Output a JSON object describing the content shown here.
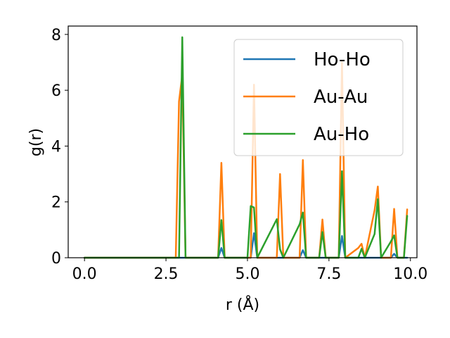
{
  "chart_data": {
    "type": "line",
    "title": "",
    "xlabel": "r (Å)",
    "ylabel": "g(r)",
    "xlim": [
      -0.5,
      10.2
    ],
    "ylim": [
      0,
      8.3
    ],
    "xticks": [
      0.0,
      2.5,
      5.0,
      7.5,
      10.0
    ],
    "xtick_labels": [
      "0.0",
      "2.5",
      "5.0",
      "7.5",
      "10.0"
    ],
    "yticks": [
      0,
      2,
      4,
      6,
      8
    ],
    "ytick_labels": [
      "0",
      "2",
      "4",
      "6",
      "8"
    ],
    "grid": false,
    "legend_position": "upper right",
    "series": [
      {
        "name": "Ho-Ho",
        "color": "#1f77b4",
        "points": [
          [
            0,
            0
          ],
          [
            2.8,
            0
          ],
          [
            2.9,
            0
          ],
          [
            3.0,
            0
          ],
          [
            3.1,
            0
          ],
          [
            4.1,
            0
          ],
          [
            4.2,
            0.35
          ],
          [
            4.3,
            0
          ],
          [
            5.0,
            0
          ],
          [
            5.1,
            0
          ],
          [
            5.2,
            0.88
          ],
          [
            5.3,
            0
          ],
          [
            5.9,
            0
          ],
          [
            6.0,
            0
          ],
          [
            6.1,
            0
          ],
          [
            6.6,
            0
          ],
          [
            6.7,
            0.27
          ],
          [
            6.8,
            0
          ],
          [
            7.2,
            0
          ],
          [
            7.3,
            0
          ],
          [
            7.4,
            0
          ],
          [
            7.8,
            0
          ],
          [
            7.9,
            0.78
          ],
          [
            8.0,
            0
          ],
          [
            8.4,
            0
          ],
          [
            8.5,
            0
          ],
          [
            8.6,
            0
          ],
          [
            8.9,
            0
          ],
          [
            9.0,
            0
          ],
          [
            9.1,
            0
          ],
          [
            9.4,
            0
          ],
          [
            9.5,
            0.14
          ],
          [
            9.6,
            0
          ],
          [
            9.8,
            0
          ],
          [
            9.9,
            0
          ]
        ]
      },
      {
        "name": "Au-Au",
        "color": "#ff7f0e",
        "points": [
          [
            0,
            0
          ],
          [
            2.8,
            0
          ],
          [
            2.9,
            5.6
          ],
          [
            3.0,
            6.55
          ],
          [
            3.1,
            0
          ],
          [
            4.1,
            0
          ],
          [
            4.2,
            3.4
          ],
          [
            4.3,
            0
          ],
          [
            5.0,
            0
          ],
          [
            5.1,
            0
          ],
          [
            5.2,
            6.2
          ],
          [
            5.3,
            0
          ],
          [
            5.9,
            0
          ],
          [
            6.0,
            3.0
          ],
          [
            6.1,
            0
          ],
          [
            6.6,
            0
          ],
          [
            6.7,
            3.5
          ],
          [
            6.8,
            0
          ],
          [
            7.2,
            0
          ],
          [
            7.3,
            1.37
          ],
          [
            7.4,
            0
          ],
          [
            7.8,
            0
          ],
          [
            7.9,
            7.0
          ],
          [
            8.0,
            0
          ],
          [
            8.4,
            0.35
          ],
          [
            8.5,
            0.5
          ],
          [
            8.6,
            0
          ],
          [
            8.9,
            1.7
          ],
          [
            9.0,
            2.55
          ],
          [
            9.1,
            0
          ],
          [
            9.4,
            0
          ],
          [
            9.5,
            1.75
          ],
          [
            9.6,
            0
          ],
          [
            9.8,
            0
          ],
          [
            9.9,
            1.73
          ]
        ]
      },
      {
        "name": "Au-Ho",
        "color": "#2ca02c",
        "points": [
          [
            0,
            0
          ],
          [
            2.8,
            0
          ],
          [
            2.9,
            0
          ],
          [
            3.0,
            7.9
          ],
          [
            3.1,
            0
          ],
          [
            4.1,
            0
          ],
          [
            4.2,
            1.35
          ],
          [
            4.3,
            0
          ],
          [
            5.0,
            0
          ],
          [
            5.1,
            1.85
          ],
          [
            5.2,
            1.8
          ],
          [
            5.3,
            0
          ],
          [
            5.9,
            1.38
          ],
          [
            6.0,
            0.3
          ],
          [
            6.1,
            0
          ],
          [
            6.6,
            1.2
          ],
          [
            6.7,
            1.62
          ],
          [
            6.8,
            0
          ],
          [
            7.2,
            0
          ],
          [
            7.3,
            0.92
          ],
          [
            7.4,
            0
          ],
          [
            7.8,
            0
          ],
          [
            7.9,
            3.1
          ],
          [
            8.0,
            0
          ],
          [
            8.4,
            0
          ],
          [
            8.5,
            0.32
          ],
          [
            8.6,
            0
          ],
          [
            8.9,
            0.85
          ],
          [
            9.0,
            2.1
          ],
          [
            9.1,
            0
          ],
          [
            9.4,
            0.58
          ],
          [
            9.5,
            0.8
          ],
          [
            9.6,
            0
          ],
          [
            9.8,
            0
          ],
          [
            9.9,
            1.5
          ]
        ]
      }
    ]
  }
}
